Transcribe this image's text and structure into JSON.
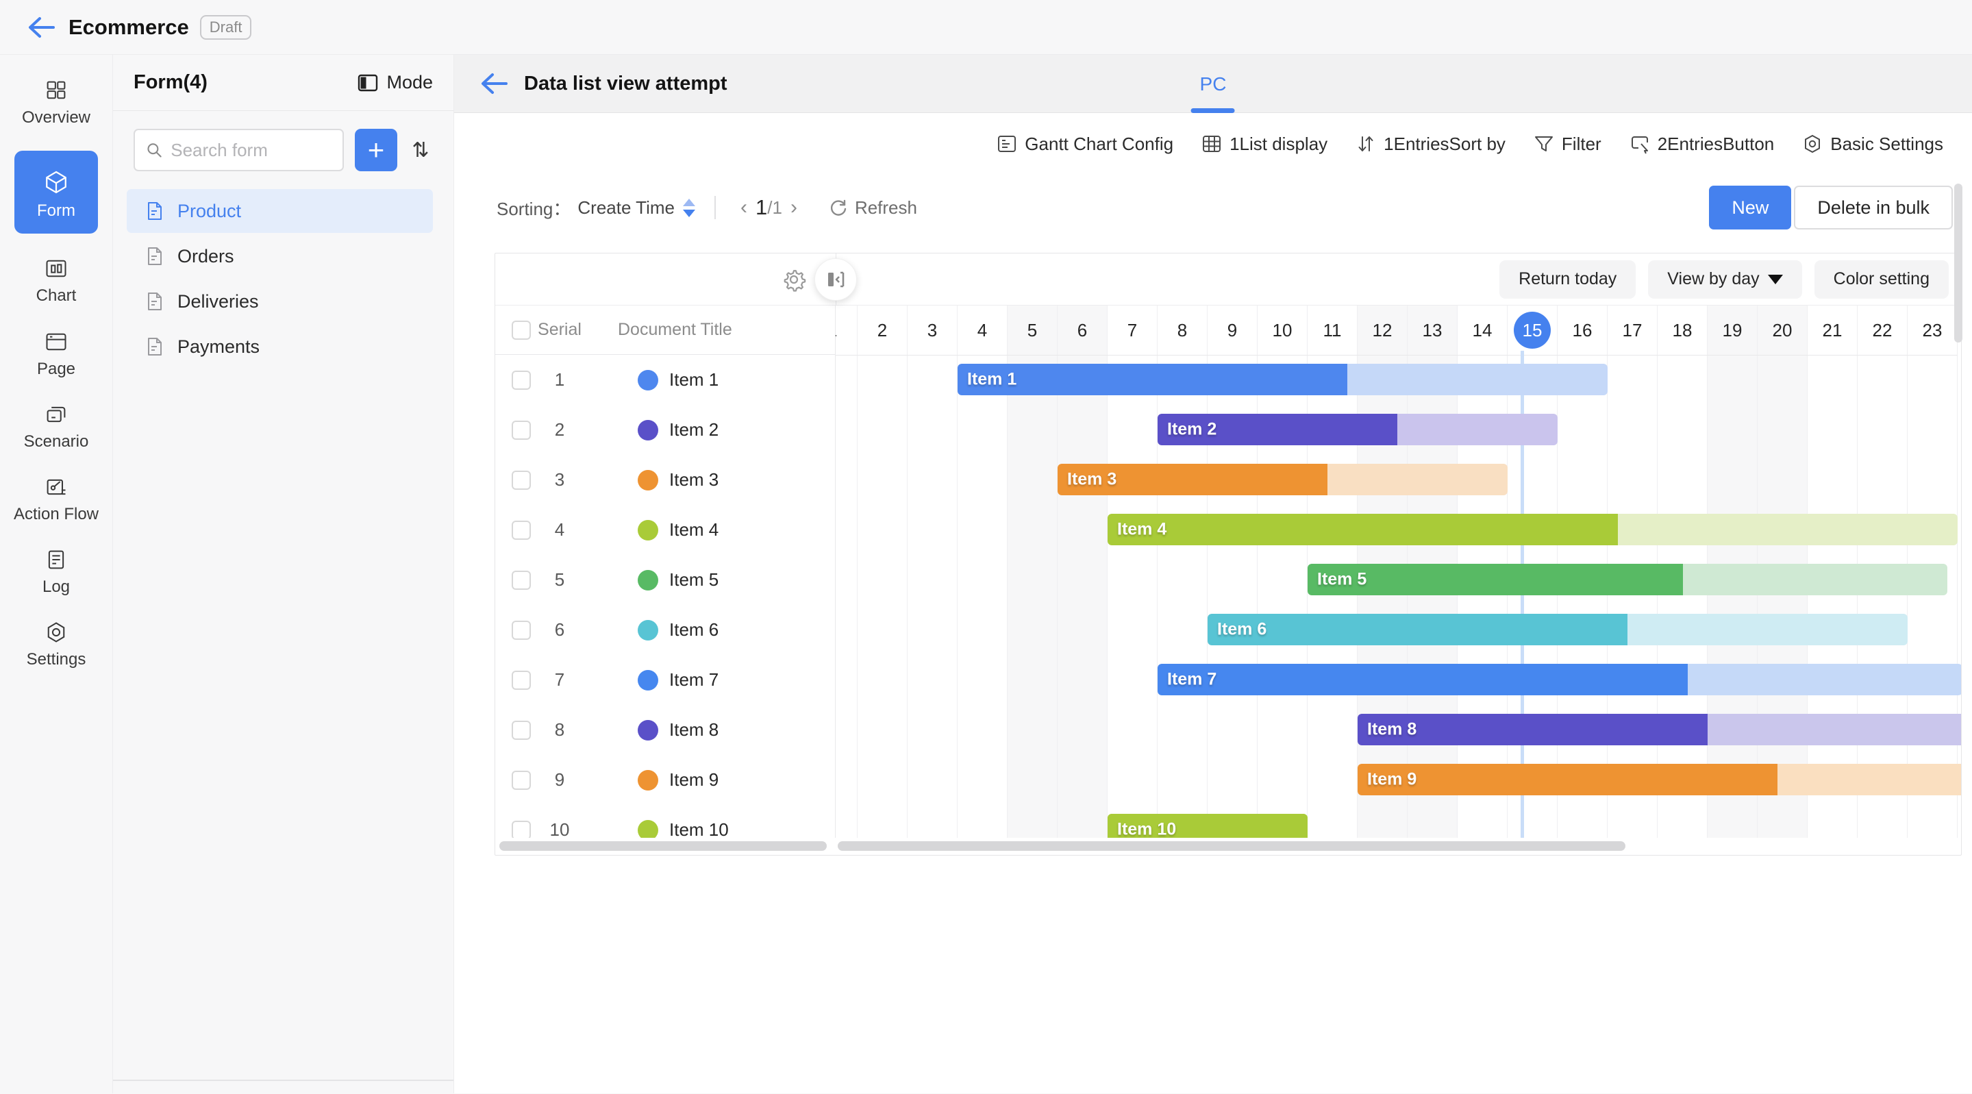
{
  "app_header": {
    "title": "Ecommerce",
    "badge": "Draft"
  },
  "sidebar": {
    "items": [
      {
        "label": "Overview",
        "icon": "overview-icon",
        "active": false
      },
      {
        "label": "Form",
        "icon": "form-cube-icon",
        "active": true
      },
      {
        "label": "Chart",
        "icon": "chart-icon",
        "active": false
      },
      {
        "label": "Page",
        "icon": "page-icon",
        "active": false
      },
      {
        "label": "Scenario",
        "icon": "scenario-icon",
        "active": false
      },
      {
        "label": "Action Flow",
        "icon": "action-flow-icon",
        "active": false
      },
      {
        "label": "Log",
        "icon": "log-icon",
        "active": false
      },
      {
        "label": "Settings",
        "icon": "settings-icon",
        "active": false
      }
    ]
  },
  "form_panel": {
    "title": "Form(4)",
    "mode_label": "Mode",
    "search_placeholder": "Search form",
    "add_label": "+",
    "forms": [
      {
        "label": "Product",
        "selected": true
      },
      {
        "label": "Orders",
        "selected": false
      },
      {
        "label": "Deliveries",
        "selected": false
      },
      {
        "label": "Payments",
        "selected": false
      }
    ]
  },
  "view_header": {
    "title": "Data list view attempt",
    "tab": "PC"
  },
  "toolbar": {
    "items": [
      {
        "label": "Gantt Chart Config",
        "icon": "gantt-config-icon"
      },
      {
        "label": "1List display",
        "icon": "list-display-icon"
      },
      {
        "label": "1EntriesSort by",
        "icon": "sort-arrows-icon"
      },
      {
        "label": "Filter",
        "icon": "filter-icon"
      },
      {
        "label": "2EntriesButton",
        "icon": "button-click-icon"
      },
      {
        "label": "Basic Settings",
        "icon": "basic-settings-icon"
      }
    ]
  },
  "actions": {
    "sorting_label": "Sorting：",
    "sorting_field": "Create Time",
    "prev": "‹",
    "next": "›",
    "page_current": "1",
    "page_total": "/1",
    "refresh_label": "Refresh",
    "new_label": "New",
    "delete_label": "Delete in bulk"
  },
  "gantt": {
    "buttons": {
      "return_today": "Return today",
      "view_by": "View by day",
      "color_setting": "Color setting"
    },
    "columns": {
      "serial": "Serial",
      "title": "Document Title"
    },
    "day_count": 23,
    "day_width": 73,
    "today": 15,
    "weekend_days": [
      5,
      6,
      12,
      13,
      19,
      20
    ],
    "items": [
      {
        "serial": "1",
        "label": "Item 1",
        "start": 4,
        "progress_end": 11.8,
        "end": 17,
        "color": "#4e87ee",
        "light": "#c5d8f8"
      },
      {
        "serial": "2",
        "label": "Item 2",
        "start": 8,
        "progress_end": 12.8,
        "end": 16,
        "color": "#5a50c8",
        "light": "#cac4ed"
      },
      {
        "serial": "3",
        "label": "Item 3",
        "start": 6,
        "progress_end": 11.4,
        "end": 15,
        "color": "#ee9332",
        "light": "#f9dfc2"
      },
      {
        "serial": "4",
        "label": "Item 4",
        "start": 7,
        "progress_end": 17.2,
        "end": 24,
        "color": "#a9cb38",
        "light": "#e5efc7"
      },
      {
        "serial": "5",
        "label": "Item 5",
        "start": 11,
        "progress_end": 18.5,
        "end": 23.8,
        "color": "#58ba64",
        "light": "#cfe9d3"
      },
      {
        "serial": "6",
        "label": "Item 6",
        "start": 9,
        "progress_end": 17.4,
        "end": 23,
        "color": "#58c4d4",
        "light": "#cfecf3"
      },
      {
        "serial": "7",
        "label": "Item 7",
        "start": 8,
        "progress_end": 18.6,
        "end": 24.1,
        "color": "#4687ef",
        "light": "#c5d9f8"
      },
      {
        "serial": "8",
        "label": "Item 8",
        "start": 12,
        "progress_end": 19.0,
        "end": 24.2,
        "color": "#5a50c8",
        "light": "#cac6ec"
      },
      {
        "serial": "9",
        "label": "Item 9",
        "start": 12,
        "progress_end": 20.4,
        "end": 24.3,
        "color": "#ee9332",
        "light": "#fadfc0"
      },
      {
        "serial": "10",
        "label": "Item 10",
        "start": 7,
        "progress_end": 11,
        "end": 11,
        "color": "#a9cb38",
        "light": "#a9cb38"
      }
    ]
  }
}
